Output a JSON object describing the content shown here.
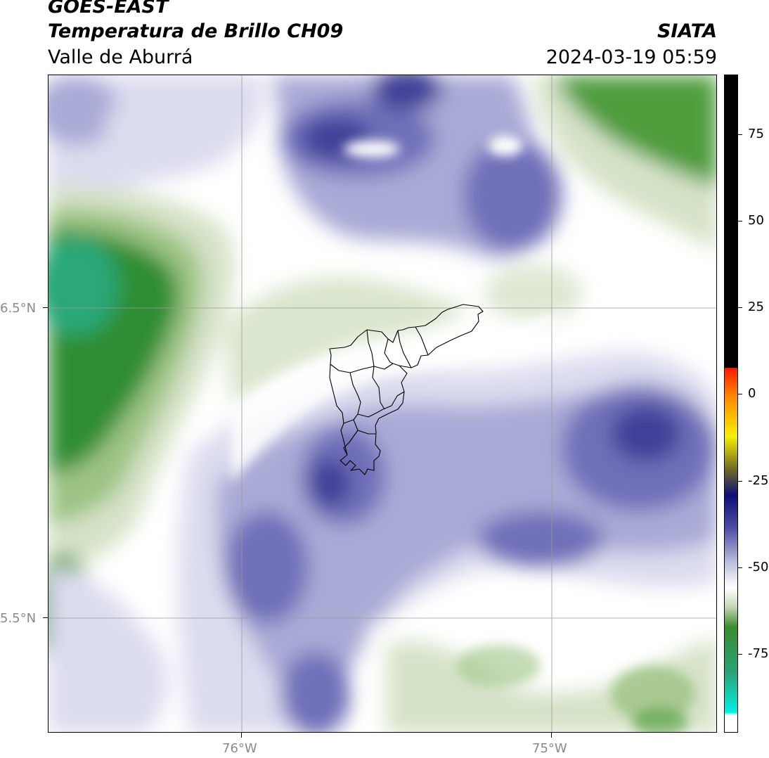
{
  "header": {
    "satellite": "GOES-EAST",
    "title": "Temperatura de Brillo CH09",
    "region": "Valle de Aburrá",
    "agency": "SIATA",
    "timestamp": "2024-03-19 05:59"
  },
  "axes": {
    "lat_ticks": [
      "6.5°N",
      "5.5°N"
    ],
    "lon_ticks": [
      "76°W",
      "75°W"
    ]
  },
  "colorbar": {
    "ticks": [
      "75",
      "50",
      "25",
      "0",
      "-25",
      "-50",
      "-75"
    ],
    "colors": {
      "black": "#000000",
      "red": "#ff1a00",
      "orange": "#ff8a00",
      "yellow": "#f5f000",
      "olive": "#6f6a25",
      "navy": "#0d0d78",
      "purple": "#4d4ea3",
      "lavender": "#b9badb",
      "white": "#ffffff",
      "green_light": "#c4d6b4",
      "green": "#3a8c2e",
      "teal": "#2aa37a",
      "cyan": "#00f0e0"
    }
  },
  "map_colors": {
    "white": "#ffffff",
    "lavender_light": "#dcdcef",
    "lavender": "#a9aad6",
    "purple": "#6f70b9",
    "purple_dark": "#3f4098",
    "green_light": "#d5e2c7",
    "green_mid": "#9cc384",
    "green": "#4f9c3c",
    "green_dark": "#2f8d33",
    "teal": "#2aa878",
    "grid": "#9a9a9a",
    "border": "#000000"
  }
}
